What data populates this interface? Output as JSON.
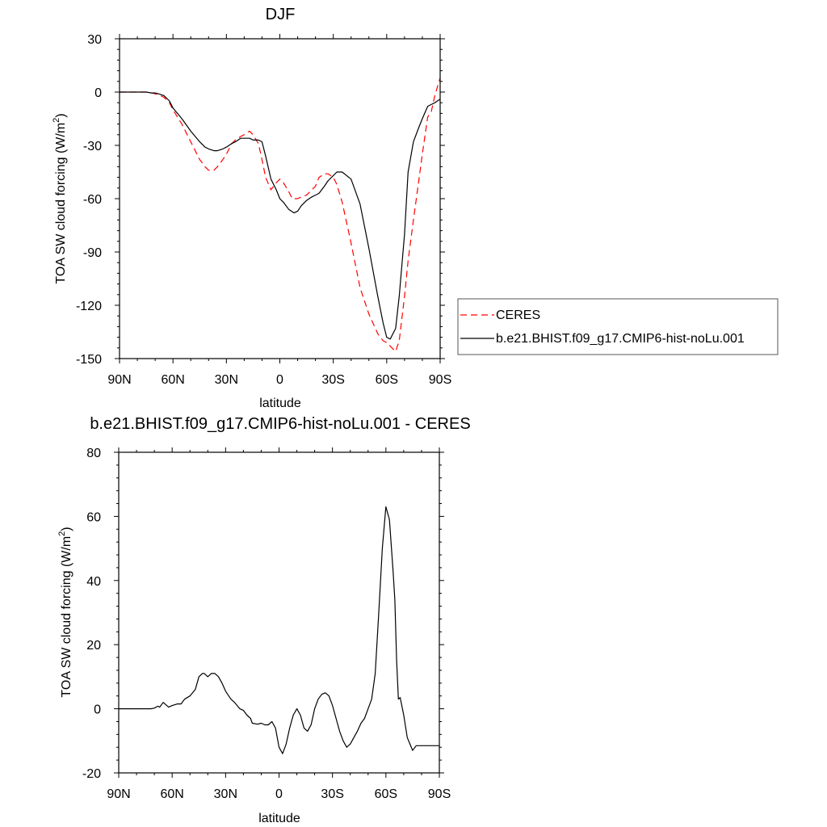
{
  "chart_data": [
    {
      "type": "line",
      "title": "DJF",
      "xlabel": "latitude",
      "ylabel": "TOA SW cloud forcing (W/m",
      "ylabel_sup": "2",
      "ylabel_tail": ")",
      "xlim": [
        90,
        -90
      ],
      "ylim": [
        -150,
        30
      ],
      "xticks": [
        {
          "value": 90,
          "label": "90N"
        },
        {
          "value": 60,
          "label": "60N"
        },
        {
          "value": 30,
          "label": "30N"
        },
        {
          "value": 0,
          "label": "0"
        },
        {
          "value": -30,
          "label": "30S"
        },
        {
          "value": -60,
          "label": "60S"
        },
        {
          "value": -90,
          "label": "90S"
        }
      ],
      "yticks": [
        {
          "value": 30,
          "label": "30"
        },
        {
          "value": 0,
          "label": "0"
        },
        {
          "value": -30,
          "label": "-30"
        },
        {
          "value": -60,
          "label": "-60"
        },
        {
          "value": -90,
          "label": "-90"
        },
        {
          "value": -120,
          "label": "-120"
        },
        {
          "value": -150,
          "label": "-150"
        }
      ],
      "series": [
        {
          "name": "CERES",
          "color": "#ff0000",
          "dash": "dashed",
          "x": [
            90,
            80,
            75,
            72,
            70,
            68,
            65,
            62,
            60,
            55,
            50,
            45,
            42,
            40,
            37,
            35,
            32,
            30,
            27,
            25,
            22,
            20,
            17,
            15,
            12,
            10,
            8,
            5,
            2,
            0,
            -2,
            -5,
            -7,
            -10,
            -12,
            -15,
            -20,
            -22,
            -25,
            -27,
            -30,
            -32,
            -35,
            -40,
            -45,
            -50,
            -55,
            -58,
            -60,
            -63,
            -65,
            -67,
            -70,
            -72,
            -75,
            -78,
            -80,
            -83,
            -85,
            -87,
            -90
          ],
          "values": [
            0,
            0,
            0,
            -0.5,
            -1,
            -1.5,
            -3,
            -6,
            -10,
            -18,
            -28,
            -38,
            -42,
            -44,
            -44,
            -42,
            -38,
            -35,
            -29,
            -27,
            -25,
            -24,
            -22,
            -24,
            -29,
            -38,
            -48,
            -55,
            -51,
            -49,
            -51,
            -56,
            -60,
            -60,
            -59,
            -58,
            -53,
            -48,
            -46,
            -46,
            -48,
            -52,
            -62,
            -85,
            -110,
            -125,
            -136,
            -140,
            -141,
            -144,
            -146,
            -140,
            -115,
            -95,
            -72,
            -50,
            -35,
            -14,
            -11,
            -2,
            8
          ]
        },
        {
          "name": "b.e21.BHIST.f09_g17.CMIP6-hist-noLu.001",
          "color": "#000000",
          "dash": "solid",
          "x": [
            90,
            80,
            75,
            72,
            70,
            68,
            65,
            62,
            60,
            55,
            50,
            45,
            42,
            40,
            37,
            35,
            32,
            30,
            27,
            25,
            22,
            20,
            17,
            15,
            12,
            10,
            8,
            5,
            2,
            0,
            -2,
            -5,
            -8,
            -10,
            -12,
            -15,
            -18,
            -20,
            -22,
            -25,
            -27,
            -30,
            -32,
            -35,
            -40,
            -45,
            -50,
            -55,
            -58,
            -60,
            -62,
            -65,
            -67,
            -70,
            -72,
            -75,
            -78,
            -80,
            -83,
            -85,
            -87,
            -90
          ],
          "values": [
            0,
            0,
            0,
            -0.5,
            -0.5,
            -1,
            -2,
            -5,
            -9,
            -15,
            -22,
            -28,
            -31,
            -32,
            -33,
            -33,
            -32,
            -31,
            -29,
            -28,
            -26,
            -26,
            -26,
            -27,
            -27,
            -28,
            -36,
            -49,
            -55,
            -60,
            -62,
            -66,
            -68,
            -67,
            -64,
            -61,
            -59,
            -58,
            -57,
            -53,
            -50,
            -47,
            -45,
            -45,
            -49,
            -63,
            -88,
            -115,
            -130,
            -138,
            -139,
            -133,
            -115,
            -80,
            -45,
            -28,
            -20,
            -15,
            -8,
            -7,
            -6,
            -4
          ]
        }
      ],
      "legend": [
        {
          "label": "CERES",
          "color": "#ff0000",
          "dash": "dashed"
        },
        {
          "label": "b.e21.BHIST.f09_g17.CMIP6-hist-noLu.001",
          "color": "#000000",
          "dash": "solid"
        }
      ]
    },
    {
      "type": "line",
      "title": "b.e21.BHIST.f09_g17.CMIP6-hist-noLu.001 - CERES",
      "xlabel": "latitude",
      "ylabel": "TOA SW cloud forcing (W/m",
      "ylabel_sup": "2",
      "ylabel_tail": ")",
      "xlim": [
        90,
        -90
      ],
      "ylim": [
        -20,
        80
      ],
      "xticks": [
        {
          "value": 90,
          "label": "90N"
        },
        {
          "value": 60,
          "label": "60N"
        },
        {
          "value": 30,
          "label": "30N"
        },
        {
          "value": 0,
          "label": "0"
        },
        {
          "value": -30,
          "label": "30S"
        },
        {
          "value": -60,
          "label": "60S"
        },
        {
          "value": -90,
          "label": "90S"
        }
      ],
      "yticks": [
        {
          "value": 80,
          "label": "80"
        },
        {
          "value": 60,
          "label": "60"
        },
        {
          "value": 40,
          "label": "40"
        },
        {
          "value": 20,
          "label": "20"
        },
        {
          "value": 0,
          "label": "0"
        },
        {
          "value": -20,
          "label": "-20"
        }
      ],
      "series": [
        {
          "name": "b.e21.BHIST.f09_g17.CMIP6-hist-noLu.001 - CERES",
          "color": "#000000",
          "dash": "solid",
          "x": [
            90,
            85,
            80,
            75,
            72,
            70,
            68,
            67,
            65,
            62,
            60,
            57,
            55,
            53,
            50,
            47,
            45,
            43,
            42,
            40,
            38,
            36,
            34,
            32,
            30,
            27,
            25,
            22,
            20,
            18,
            16,
            15,
            12,
            10,
            8,
            6,
            4,
            2,
            0,
            -2,
            -4,
            -6,
            -8,
            -10,
            -12,
            -14,
            -16,
            -18,
            -20,
            -22,
            -24,
            -26,
            -28,
            -30,
            -32,
            -34,
            -36,
            -38,
            -40,
            -42,
            -44,
            -46,
            -48,
            -50,
            -52,
            -54,
            -56,
            -58,
            -60,
            -62,
            -64,
            -65,
            -66,
            -67,
            -68,
            -70,
            -72,
            -75,
            -77,
            -78,
            -80,
            -82,
            -85,
            -87,
            -88,
            -90
          ],
          "values": [
            0,
            0,
            0,
            0,
            0,
            0.2,
            0.8,
            0.5,
            2,
            0.5,
            1,
            1.5,
            1.5,
            3,
            4,
            6,
            10,
            11,
            11,
            10,
            11,
            11,
            10,
            8,
            5.5,
            3,
            2,
            0,
            -0.5,
            -2,
            -3,
            -4.5,
            -4.8,
            -4.5,
            -5,
            -5,
            -4,
            -6,
            -12,
            -14,
            -11,
            -6,
            -2,
            0,
            -2,
            -6,
            -7,
            -5,
            0,
            3,
            4.5,
            5,
            4,
            1,
            -3,
            -7,
            -10,
            -12,
            -11,
            -9,
            -7,
            -4.5,
            -3,
            0,
            3,
            11,
            30,
            50,
            63,
            59,
            43,
            34,
            15,
            3,
            3.5,
            -2,
            -9,
            -13,
            -11.5,
            -11.5,
            -11.5,
            -11.5,
            -11.5,
            -11.5,
            -11.5,
            -11.5
          ]
        }
      ]
    }
  ]
}
